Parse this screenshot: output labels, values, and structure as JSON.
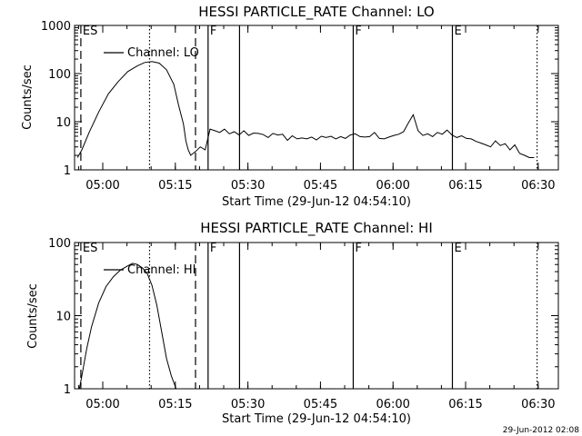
{
  "footer_timestamp": "29-Jun-2012 02:08",
  "chart_data": [
    {
      "type": "line",
      "title": "HESSI PARTICLE_RATE Channel: LO",
      "xlabel": "Start Time (29-Jun-12 04:54:10)",
      "ylabel": "Counts/sec",
      "yscale": "log",
      "ylim": [
        1,
        1000
      ],
      "xlim_min_after_start": [
        0,
        100
      ],
      "x_tick_labels": [
        "05:00",
        "05:15",
        "05:30",
        "05:45",
        "06:00",
        "06:15",
        "06:30"
      ],
      "x_tick_minutes": [
        5.83,
        20.83,
        35.83,
        50.83,
        65.83,
        80.83,
        95.83
      ],
      "y_tick_labels": [
        "1",
        "10",
        "100",
        "1000"
      ],
      "y_tick_values": [
        1,
        10,
        100,
        1000
      ],
      "legend": {
        "label": "Channel: LO",
        "placement": "top-left"
      },
      "markers": [
        {
          "label": "ES",
          "minute": 1.3,
          "style": "dashed"
        },
        {
          "label": "",
          "minute": 25.0,
          "style": "dashed"
        },
        {
          "label": "",
          "minute": 15.5,
          "style": "dotted"
        },
        {
          "label": "F",
          "minute": 27.6,
          "style": "solid"
        },
        {
          "label": "",
          "minute": 34.1,
          "style": "solid"
        },
        {
          "label": "F",
          "minute": 57.6,
          "style": "solid"
        },
        {
          "label": "E",
          "minute": 78.1,
          "style": "solid"
        },
        {
          "label": "",
          "minute": 95.6,
          "style": "dotted"
        }
      ],
      "series": [
        {
          "name": "Channel: LO",
          "x": [
            0.6,
            1.5,
            3,
            5,
            7,
            9,
            11,
            13,
            14.5,
            16,
            17.5,
            19,
            20.5,
            21.5,
            22.5,
            23,
            23.5,
            24,
            25,
            26,
            27,
            28,
            29,
            30,
            31,
            32,
            33,
            34,
            35,
            36,
            37,
            38,
            39,
            40,
            41,
            42,
            43,
            44,
            45,
            46,
            47,
            48,
            49,
            50,
            51,
            52,
            53,
            54,
            55,
            56,
            57,
            58,
            59,
            60,
            61,
            62,
            63,
            64,
            65,
            66,
            67,
            68,
            69,
            70,
            71,
            72,
            73,
            74,
            75,
            76,
            77,
            78,
            79,
            80,
            81,
            82,
            83,
            84,
            85,
            86,
            87,
            88,
            89,
            90,
            91,
            92,
            93,
            94,
            95
          ],
          "y": [
            1.8,
            2.6,
            6,
            16,
            38,
            68,
            110,
            145,
            170,
            178,
            165,
            120,
            60,
            22,
            9,
            4,
            2.6,
            2,
            2.4,
            3,
            2.6,
            7,
            6.5,
            6,
            7,
            5.6,
            6.2,
            5.3,
            6.5,
            5.2,
            5.8,
            5.7,
            5.4,
            4.7,
            5.7,
            5.3,
            5.5,
            4.1,
            5.1,
            4.4,
            4.6,
            4.4,
            4.8,
            4.2,
            5,
            4.7,
            5,
            4.4,
            4.9,
            4.5,
            5.3,
            5.6,
            4.9,
            4.8,
            4.9,
            6,
            4.5,
            4.4,
            4.8,
            5.2,
            5.5,
            6.2,
            9.5,
            14,
            6.5,
            5.2,
            5.6,
            4.9,
            6,
            5.5,
            6.7,
            5.3,
            4.7,
            5.1,
            4.5,
            4.4,
            3.9,
            3.6,
            3.3,
            3,
            4,
            3.2,
            3.5,
            2.6,
            3.3,
            2.2,
            2,
            1.8,
            1.8
          ]
        }
      ]
    },
    {
      "type": "line",
      "title": "HESSI PARTICLE_RATE Channel: HI",
      "xlabel": "Start Time (29-Jun-12 04:54:10)",
      "ylabel": "Counts/sec",
      "yscale": "log",
      "ylim": [
        1,
        100
      ],
      "xlim_min_after_start": [
        0,
        100
      ],
      "x_tick_labels": [
        "05:00",
        "05:15",
        "05:30",
        "05:45",
        "06:00",
        "06:15",
        "06:30"
      ],
      "x_tick_minutes": [
        5.83,
        20.83,
        35.83,
        50.83,
        65.83,
        80.83,
        95.83
      ],
      "y_tick_labels": [
        "1",
        "10",
        "100"
      ],
      "y_tick_values": [
        1,
        10,
        100
      ],
      "legend": {
        "label": "Channel: HI",
        "placement": "top-left"
      },
      "markers": [
        {
          "label": "ES",
          "minute": 1.3,
          "style": "dashed"
        },
        {
          "label": "",
          "minute": 25.0,
          "style": "dashed"
        },
        {
          "label": "",
          "minute": 15.5,
          "style": "dotted"
        },
        {
          "label": "F",
          "minute": 27.6,
          "style": "solid"
        },
        {
          "label": "",
          "minute": 34.1,
          "style": "solid"
        },
        {
          "label": "F",
          "minute": 57.6,
          "style": "solid"
        },
        {
          "label": "E",
          "minute": 78.1,
          "style": "solid"
        },
        {
          "label": "",
          "minute": 95.6,
          "style": "dotted"
        }
      ],
      "series": [
        {
          "name": "Channel: HI",
          "x": [
            1,
            1.5,
            2.5,
            3.5,
            5,
            6.5,
            8,
            9.5,
            11,
            12,
            13,
            14,
            15,
            16,
            17,
            18,
            19,
            20,
            21
          ],
          "y": [
            1,
            1.5,
            3.5,
            7,
            15,
            25,
            34,
            42,
            48,
            52,
            50,
            45,
            38,
            26,
            14,
            6,
            2.6,
            1.5,
            1
          ]
        }
      ]
    }
  ]
}
